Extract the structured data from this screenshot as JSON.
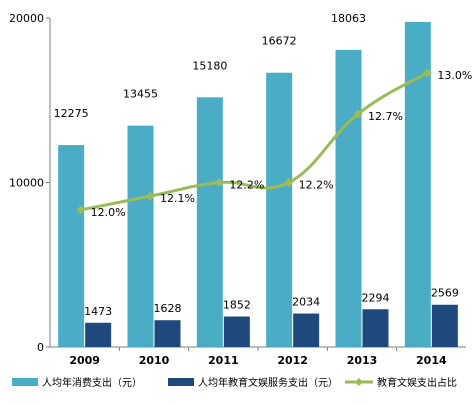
{
  "chart_data": {
    "type": "bar",
    "categories": [
      "2009",
      "2010",
      "2011",
      "2012",
      "2013",
      "2014"
    ],
    "series": [
      {
        "name": "人均年消费支出（元）",
        "type": "bar",
        "axis": "left",
        "color": "#4bacc6",
        "values": [
          12275,
          13455,
          15180,
          16672,
          18063,
          19762
        ]
      },
      {
        "name": "人均年教育文娱服务支出（元）",
        "type": "bar",
        "axis": "left",
        "color": "#1f497d",
        "values": [
          1473,
          1628,
          1852,
          2034,
          2294,
          2569
        ]
      },
      {
        "name": "教育文娱支出占比",
        "type": "line",
        "axis": "right",
        "color": "#9bbb59",
        "values": [
          12.0,
          12.1,
          12.2,
          12.2,
          12.7,
          13.0
        ],
        "labels": [
          "12.0%",
          "12.1%",
          "12.2%",
          "12.2%",
          "12.7%",
          "13.0%"
        ]
      }
    ],
    "y_axis": {
      "min": 0,
      "max": 20000,
      "ticks": [
        0,
        10000,
        20000
      ],
      "tick_labels": [
        "0",
        "10000",
        "20000"
      ]
    },
    "secondary_axis": {
      "min": 11.0,
      "max": 13.4,
      "visible": false
    },
    "legend": {
      "position": "bottom"
    },
    "grid": false
  }
}
